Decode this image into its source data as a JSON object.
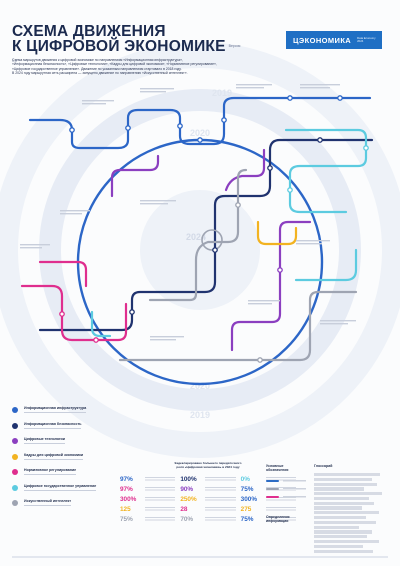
{
  "title": {
    "line1": "СХЕМА ДВИЖЕНИЯ",
    "line2": "К ЦИФРОВОЙ ЭКОНОМИКЕ",
    "version": "Версия 1.0"
  },
  "subtitle": [
    "Схема маршрутов движения к цифровой экономике по направлениям «Информационная инфраструктура»,",
    "«Информационная безопасность», «Цифровые технологии», «Кадры для цифровой экономики», «Нормативное регулирование»,",
    "«Цифровое государственное управление». Движение по указанным направлениям стартовало в 2018 году.",
    "В 2024 году маршрутная сеть расширена — запущено движение по направлению «Искусственный интеллект»."
  ],
  "logo": {
    "main": "ЭКОНОМИКА",
    "prefix": "Ц",
    "sub_line1": "Data Economy",
    "sub_line2": "2024"
  },
  "years": [
    "2019",
    "2020",
    "2024",
    "2023",
    "2021",
    "2022",
    "2020",
    "2019"
  ],
  "lines": [
    {
      "name": "Информационная инфраструктура",
      "color": "#2c66c7"
    },
    {
      "name": "Информационная безопасность",
      "color": "#20336f"
    },
    {
      "name": "Цифровые технологии",
      "color": "#8b3fc0"
    },
    {
      "name": "Кадры для цифровой экономики",
      "color": "#f2b321"
    },
    {
      "name": "Нормативное регулирование",
      "color": "#df2e8e"
    },
    {
      "name": "Цифровое государственное управление",
      "color": "#5ccbe0"
    },
    {
      "name": "Искусственный интеллект",
      "color": "#9ea4b2"
    }
  ],
  "stats": {
    "title_line1": "Задекларировано большего передаточного",
    "title_line2": "роля «Цифровая экономика» в 2024 году",
    "items": [
      {
        "value": "97%",
        "color": "#2c66c7"
      },
      {
        "value": "100%",
        "color": "#20336f"
      },
      {
        "value": "0%",
        "color": "#5ccbe0"
      },
      {
        "value": "97%",
        "color": "#df2e8e"
      },
      {
        "value": "90%",
        "color": "#8b3fc0"
      },
      {
        "value": "75%",
        "color": "#2c66c7"
      },
      {
        "value": "300%",
        "color": "#df2e8e"
      },
      {
        "value": "250%",
        "color": "#f2b321"
      },
      {
        "value": "300%",
        "color": "#2c66c7"
      },
      {
        "value": "125",
        "color": "#f2b321"
      },
      {
        "value": "28",
        "color": "#df2e8e"
      },
      {
        "value": "275",
        "color": "#f2b321"
      },
      {
        "value": "75%",
        "color": "#9ea4b2"
      },
      {
        "value": "70%",
        "color": "#9ea4b2"
      },
      {
        "value": "75%",
        "color": "#2c66c7"
      }
    ]
  },
  "info": {
    "symbols_title": "Условные обозначения",
    "extra_title": "Определения информации",
    "glossary_title": "Глоссарий"
  }
}
